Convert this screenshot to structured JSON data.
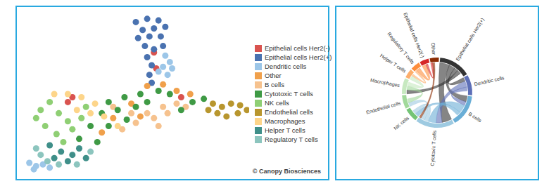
{
  "chart_data": [
    {
      "type": "scatter",
      "legend": "right",
      "tick_labels": false,
      "xlim": [
        0,
        100
      ],
      "ylim": [
        0,
        100
      ],
      "annotations": [
        "© Canopy Biosciences"
      ],
      "series": [
        {
          "name": "Epithelial cells Her2(-)",
          "color": "#d9534f",
          "x": [
            59,
            58,
            20,
            22,
            70
          ],
          "y": [
            66,
            76,
            45,
            48,
            48
          ]
        },
        {
          "name": "Epithelial cells Her2(+)",
          "color": "#4a72b0",
          "x": [
            50,
            55,
            60,
            53,
            58,
            63,
            51,
            56,
            61,
            54,
            58,
            62,
            55,
            57,
            56,
            57
          ],
          "y": [
            95,
            97,
            96,
            90,
            91,
            92,
            85,
            86,
            86,
            80,
            78,
            80,
            73,
            68,
            62,
            57
          ]
        },
        {
          "name": "Dendritic cells",
          "color": "#9cc6e8",
          "x": [
            63,
            65,
            62,
            66,
            64,
            60,
            3,
            6,
            9,
            12,
            5
          ],
          "y": [
            74,
            70,
            67,
            66,
            62,
            64,
            7,
            5,
            6,
            4,
            3
          ]
        },
        {
          "name": "Other",
          "color": "#f0a04b",
          "x": [
            55,
            62,
            68,
            48,
            52,
            35,
            74,
            40
          ],
          "y": [
            55,
            56,
            52,
            44,
            36,
            26,
            50,
            35
          ]
        },
        {
          "name": "B cells",
          "color": "#f6c28e",
          "x": [
            40,
            48,
            55,
            62,
            68,
            58,
            64,
            72,
            50,
            44,
            60
          ],
          "y": [
            42,
            38,
            38,
            42,
            44,
            35,
            38,
            42,
            32,
            28,
            30
          ]
        },
        {
          "name": "Cytotoxic T cells",
          "color": "#3f9a45",
          "x": [
            38,
            45,
            52,
            60,
            65,
            35,
            42,
            50,
            30,
            38,
            46,
            25,
            33,
            55,
            75,
            80,
            70
          ],
          "y": [
            45,
            48,
            50,
            52,
            50,
            38,
            40,
            42,
            30,
            30,
            34,
            22,
            20,
            45,
            45,
            47,
            40
          ]
        },
        {
          "name": "NK cells",
          "color": "#8fcf74",
          "x": [
            8,
            12,
            16,
            20,
            10,
            15,
            22,
            6,
            18,
            26,
            28
          ],
          "y": [
            40,
            45,
            38,
            33,
            30,
            25,
            28,
            35,
            20,
            35,
            42
          ]
        },
        {
          "name": "Endothelial cells",
          "color": "#b8962e",
          "x": [
            84,
            88,
            92,
            96,
            99,
            86,
            90,
            95,
            82
          ],
          "y": [
            44,
            42,
            44,
            43,
            40,
            38,
            36,
            38,
            40
          ]
        },
        {
          "name": "Macrophages",
          "color": "#fdd58a",
          "x": [
            20,
            26,
            32,
            36,
            30,
            24,
            42,
            14
          ],
          "y": [
            50,
            48,
            44,
            36,
            38,
            40,
            30,
            50
          ]
        },
        {
          "name": "Helper T cells",
          "color": "#3f8f89",
          "x": [
            12,
            17,
            22,
            25,
            14,
            20,
            28
          ],
          "y": [
            18,
            14,
            12,
            16,
            10,
            8,
            10
          ]
        },
        {
          "name": "Regulatory T cells",
          "color": "#8cc5be",
          "x": [
            8,
            11,
            16,
            24,
            30,
            6
          ],
          "y": [
            12,
            8,
            6,
            6,
            14,
            16
          ]
        }
      ]
    },
    {
      "type": "chord",
      "tick_labels": false,
      "categories": [
        "Epithelial cells Her2(+)",
        "Dendritic cells",
        "B cells",
        "Cytotoxic T cells",
        "NK cells",
        "Endothelial cells",
        "Macrophages",
        "Helper T cells",
        "Regulatory T cells",
        "Epithelial cells Her2(-)",
        "Other"
      ],
      "values": [
        14,
        9,
        14,
        17,
        6,
        6,
        7,
        4,
        4,
        4,
        4
      ],
      "colors": [
        "#333333",
        "#5d6fb7",
        "#6aaed6",
        "#9ecae1",
        "#74c476",
        "#a1d99b",
        "#c7e9c0",
        "#fdae6b",
        "#fd8d3c",
        "#d62728",
        "#8c2d04"
      ],
      "links": [
        {
          "source": "Epithelial cells Her2(+)",
          "target": "Cytotoxic T cells",
          "value": 5
        },
        {
          "source": "Epithelial cells Her2(+)",
          "target": "B cells",
          "value": 3
        },
        {
          "source": "Epithelial cells Her2(+)",
          "target": "Dendritic cells",
          "value": 2
        },
        {
          "source": "Epithelial cells Her2(+)",
          "target": "Macrophages",
          "value": 2
        },
        {
          "source": "Dendritic cells",
          "target": "Cytotoxic T cells",
          "value": 3
        },
        {
          "source": "Dendritic cells",
          "target": "B cells",
          "value": 2
        },
        {
          "source": "B cells",
          "target": "Cytotoxic T cells",
          "value": 4
        },
        {
          "source": "B cells",
          "target": "NK cells",
          "value": 2
        },
        {
          "source": "Cytotoxic T cells",
          "target": "NK cells",
          "value": 2
        },
        {
          "source": "Cytotoxic T cells",
          "target": "Endothelial cells",
          "value": 2
        },
        {
          "source": "Endothelial cells",
          "target": "Macrophages",
          "value": 2
        },
        {
          "source": "Macrophages",
          "target": "Helper T cells",
          "value": 2
        },
        {
          "source": "Helper T cells",
          "target": "Regulatory T cells",
          "value": 1
        },
        {
          "source": "Regulatory T cells",
          "target": "Epithelial cells Her2(-)",
          "value": 2
        },
        {
          "source": "Epithelial cells Her2(-)",
          "target": "Other",
          "value": 1
        },
        {
          "source": "Other",
          "target": "Cytotoxic T cells",
          "value": 1
        }
      ]
    }
  ]
}
